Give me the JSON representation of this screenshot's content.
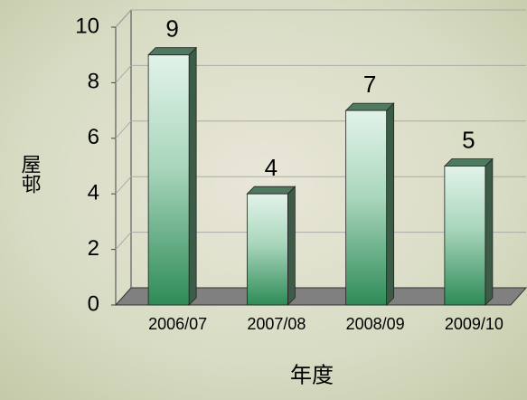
{
  "chart_data": {
    "type": "bar3d",
    "categories": [
      "2006/07",
      "2007/08",
      "2008/09",
      "2009/10"
    ],
    "values": [
      9,
      4,
      7,
      5
    ],
    "xlabel": "年度",
    "ylabel": "屋邨",
    "ylim": [
      0,
      10
    ],
    "yticks": [
      0,
      2,
      4,
      6,
      8,
      10
    ],
    "grid": true,
    "color": "#2e8b57"
  }
}
